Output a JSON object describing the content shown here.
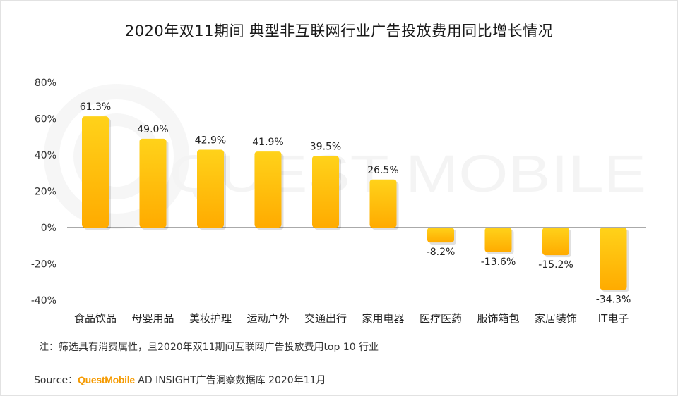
{
  "title": "2020年双11期间 典型非互联网行业广告投放费用同比增长情况",
  "watermark": "QUEST MOBILE",
  "note": "注：筛选具有消费属性，且2020年双11期间互联网广告投放费用top 10 行业",
  "source": {
    "prefix": "Source：",
    "brand": "QuestMobile",
    "rest": " AD INSIGHT广告洞察数据库 2020年11月"
  },
  "colors": {
    "bar_top": "#ffd21a",
    "bar_bottom": "#ffab00",
    "brand": "#f59a00"
  },
  "chart_data": {
    "type": "bar",
    "title": "2020年双11期间 典型非互联网行业广告投放费用同比增长情况",
    "categories": [
      "食品饮品",
      "母婴用品",
      "美妆护理",
      "运动户外",
      "交通出行",
      "家用电器",
      "医疗医药",
      "服饰箱包",
      "家居装饰",
      "IT电子"
    ],
    "values": [
      61.3,
      49.0,
      42.9,
      41.9,
      39.5,
      26.5,
      -8.2,
      -13.6,
      -15.2,
      -34.3
    ],
    "value_labels": [
      "61.3%",
      "49.0%",
      "42.9%",
      "41.9%",
      "39.5%",
      "26.5%",
      "-8.2%",
      "-13.6%",
      "-15.2%",
      "-34.3%"
    ],
    "yticks": [
      "80%",
      "60%",
      "40%",
      "20%",
      "0%",
      "-20%",
      "-40%"
    ],
    "ytick_values": [
      80,
      60,
      40,
      20,
      0,
      -20,
      -40
    ],
    "ylim": [
      -40,
      80
    ],
    "xlabel": "",
    "ylabel": "",
    "grid": false
  }
}
